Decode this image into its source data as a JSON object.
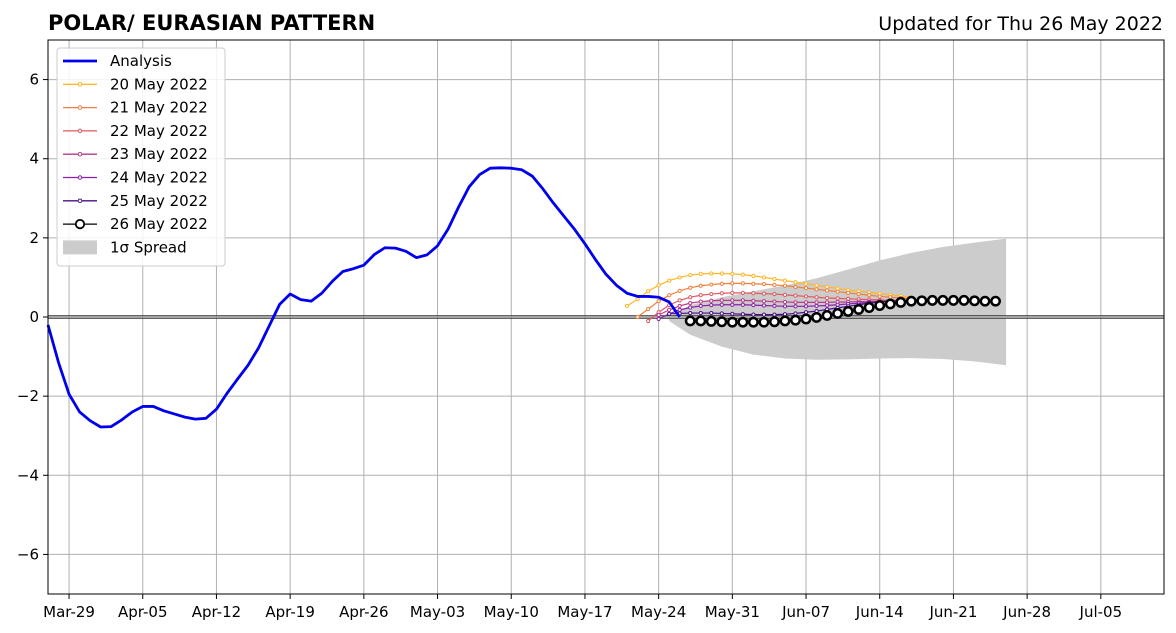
{
  "chart_data": {
    "type": "line",
    "title": "POLAR/ EURASIAN  PATTERN",
    "subtitle": "Updated for Thu 26 May 2022",
    "xlabel": "",
    "ylabel": "",
    "ylim": [
      -7,
      7
    ],
    "yticks": [
      -6,
      -4,
      -2,
      0,
      2,
      4,
      6
    ],
    "ytick_labels": [
      "−6",
      "−4",
      "−2",
      "0",
      "2",
      "4",
      "6"
    ],
    "xlim": [
      "2022-03-27",
      "2022-07-11"
    ],
    "xticks": [
      "2022-03-29",
      "2022-04-05",
      "2022-04-12",
      "2022-04-19",
      "2022-04-26",
      "2022-05-03",
      "2022-05-10",
      "2022-05-17",
      "2022-05-24",
      "2022-05-31",
      "2022-06-07",
      "2022-06-14",
      "2022-06-21",
      "2022-06-28",
      "2022-07-05"
    ],
    "xtick_labels": [
      "Mar-29",
      "Apr-05",
      "Apr-12",
      "Apr-19",
      "Apr-26",
      "May-03",
      "May-10",
      "May-17",
      "May-24",
      "May-31",
      "Jun-07",
      "Jun-14",
      "Jun-21",
      "Jun-28",
      "Jul-05"
    ],
    "grid": true,
    "legend_position": "upper-left",
    "zero_line": true,
    "analysis": {
      "name": "Analysis",
      "color": "#0000ee",
      "start": "2022-03-27",
      "values": [
        -0.2,
        -1.15,
        -1.95,
        -2.4,
        -2.62,
        -2.78,
        -2.77,
        -2.6,
        -2.4,
        -2.26,
        -2.26,
        -2.37,
        -2.45,
        -2.53,
        -2.58,
        -2.56,
        -2.33,
        -1.93,
        -1.57,
        -1.22,
        -0.78,
        -0.23,
        0.32,
        0.58,
        0.44,
        0.4,
        0.6,
        0.9,
        1.15,
        1.22,
        1.31,
        1.58,
        1.75,
        1.74,
        1.66,
        1.5,
        1.57,
        1.8,
        2.22,
        2.78,
        3.29,
        3.6,
        3.76,
        3.77,
        3.76,
        3.72,
        3.56,
        3.24,
        2.88,
        2.55,
        2.22,
        1.85,
        1.45,
        1.08,
        0.8,
        0.6,
        0.52,
        0.52,
        0.5,
        0.38,
        0.0
      ]
    },
    "forecasts": [
      {
        "name": "20 May 2022",
        "color": "#ffb627",
        "start": "2022-05-21",
        "values": [
          0.28,
          0.45,
          0.65,
          0.8,
          0.92,
          1.0,
          1.06,
          1.09,
          1.1,
          1.1,
          1.09,
          1.07,
          1.04,
          1.0,
          0.96,
          0.92,
          0.88,
          0.84,
          0.8,
          0.76,
          0.72,
          0.68,
          0.65,
          0.62,
          0.59,
          0.56,
          0.53,
          0.5
        ]
      },
      {
        "name": "21 May 2022",
        "color": "#f07f3a",
        "start": "2022-05-22",
        "values": [
          0.0,
          0.2,
          0.4,
          0.55,
          0.66,
          0.74,
          0.79,
          0.82,
          0.84,
          0.85,
          0.85,
          0.84,
          0.83,
          0.81,
          0.79,
          0.76,
          0.73,
          0.7,
          0.67,
          0.64,
          0.61,
          0.58,
          0.55,
          0.52,
          0.5,
          0.48,
          0.46
        ]
      },
      {
        "name": "22 May 2022",
        "color": "#de5a63",
        "start": "2022-05-23",
        "values": [
          -0.1,
          0.12,
          0.3,
          0.42,
          0.5,
          0.55,
          0.58,
          0.6,
          0.61,
          0.61,
          0.6,
          0.59,
          0.58,
          0.56,
          0.54,
          0.52,
          0.5,
          0.48,
          0.47,
          0.46,
          0.45,
          0.44,
          0.43,
          0.42,
          0.42,
          0.41
        ]
      },
      {
        "name": "23 May 2022",
        "color": "#b83a8a",
        "start": "2022-05-24",
        "values": [
          0.05,
          0.18,
          0.28,
          0.35,
          0.39,
          0.41,
          0.42,
          0.42,
          0.42,
          0.41,
          0.4,
          0.39,
          0.38,
          0.37,
          0.37,
          0.37,
          0.37,
          0.38,
          0.38,
          0.39,
          0.39,
          0.4,
          0.4,
          0.4,
          0.4
        ]
      },
      {
        "name": "24 May 2022",
        "color": "#8a1fa8",
        "start": "2022-05-24",
        "values": [
          -0.05,
          0.08,
          0.18,
          0.24,
          0.28,
          0.3,
          0.31,
          0.31,
          0.31,
          0.3,
          0.29,
          0.28,
          0.27,
          0.27,
          0.27,
          0.28,
          0.29,
          0.31,
          0.33,
          0.35,
          0.37,
          0.39,
          0.4,
          0.41,
          0.42,
          0.42
        ]
      },
      {
        "name": "25 May 2022",
        "color": "#4a0e8a",
        "start": "2022-05-25",
        "values": [
          0.08,
          0.09,
          0.1,
          0.1,
          0.1,
          0.09,
          0.08,
          0.07,
          0.06,
          0.06,
          0.06,
          0.07,
          0.09,
          0.12,
          0.15,
          0.19,
          0.23,
          0.27,
          0.31,
          0.35,
          0.38,
          0.4,
          0.41,
          0.42,
          0.42
        ]
      },
      {
        "name": "26 May 2022",
        "color": "#000000",
        "start": "2022-05-27",
        "values": [
          -0.1,
          -0.1,
          -0.11,
          -0.12,
          -0.13,
          -0.13,
          -0.13,
          -0.13,
          -0.12,
          -0.1,
          -0.08,
          -0.05,
          -0.01,
          0.04,
          0.09,
          0.14,
          0.19,
          0.24,
          0.29,
          0.33,
          0.37,
          0.4,
          0.41,
          0.42,
          0.42,
          0.42,
          0.42,
          0.41,
          0.4,
          0.4
        ]
      }
    ],
    "spread": {
      "name": "1σ Spread",
      "color": "#cccccc",
      "start": "2022-05-25",
      "x_days": [
        0,
        2,
        5,
        8,
        11,
        14,
        17,
        20,
        23,
        26,
        29,
        32
      ],
      "upper": [
        0.0,
        0.3,
        0.5,
        0.65,
        0.8,
        0.98,
        1.2,
        1.43,
        1.62,
        1.77,
        1.88,
        1.98
      ],
      "lower": [
        -0.1,
        -0.45,
        -0.75,
        -0.95,
        -1.05,
        -1.08,
        -1.07,
        -1.05,
        -1.04,
        -1.06,
        -1.12,
        -1.22
      ]
    }
  }
}
